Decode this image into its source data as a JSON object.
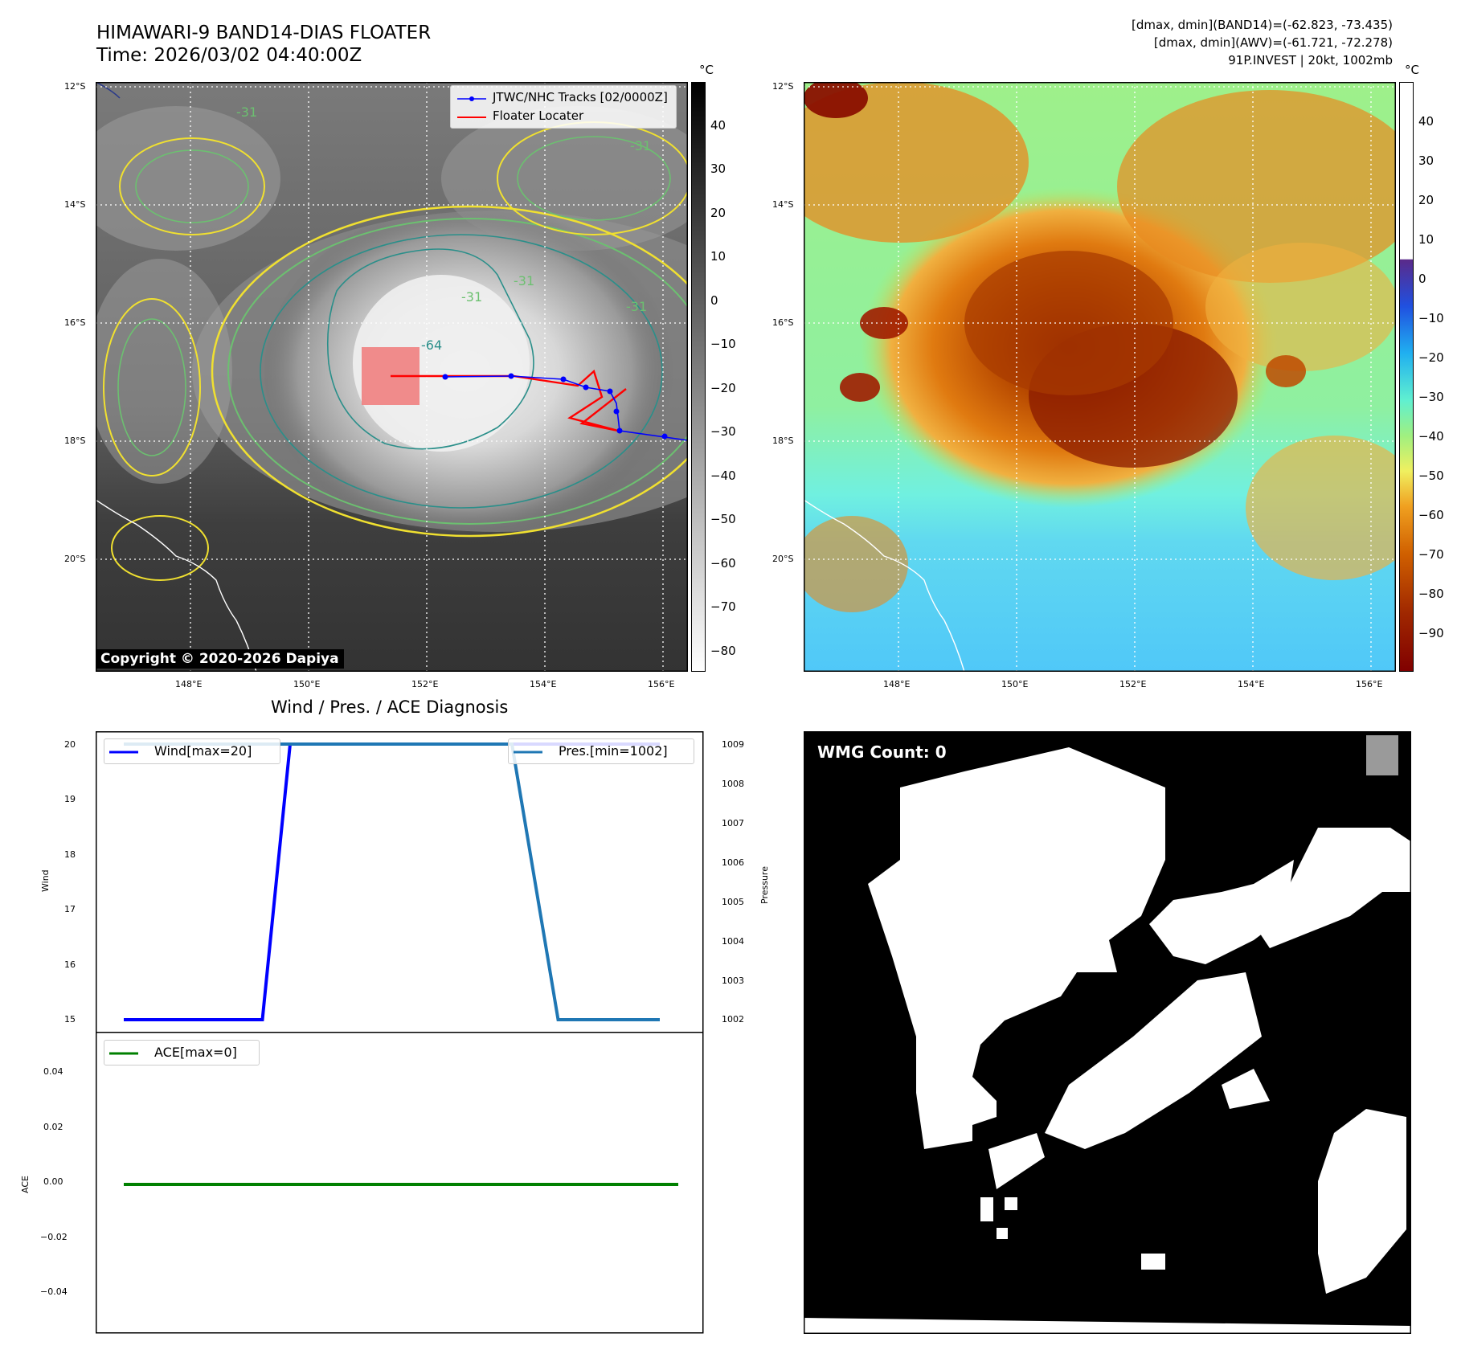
{
  "header": {
    "title_line1": "HIMAWARI-9 BAND14-DIAS FLOATER",
    "title_line2": "Time: 2026/03/02 04:40:00Z",
    "stats_line1": "[dmax, dmin](BAND14)=(-62.823, -73.435)",
    "stats_line2": "[dmax, dmin](AWV)=(-61.721, -72.278)",
    "stats_line3": "91P.INVEST | 20kt, 1002mb"
  },
  "maps": {
    "lat_labels": [
      "12°S",
      "14°S",
      "16°S",
      "18°S",
      "20°S"
    ],
    "lon_labels": [
      "148°E",
      "150°E",
      "152°E",
      "154°E",
      "156°E"
    ],
    "colorbar_unit": "°C",
    "left_colorbar_ticks": [
      "40",
      "30",
      "20",
      "10",
      "0",
      "−10",
      "−20",
      "−30",
      "−40",
      "−50",
      "−60",
      "−70",
      "−80"
    ],
    "right_colorbar_ticks": [
      "40",
      "30",
      "20",
      "10",
      "0",
      "−10",
      "−20",
      "−30",
      "−40",
      "−50",
      "−60",
      "−70",
      "−80",
      "−90"
    ],
    "legend_track": "JTWC/NHC Tracks [02/0000Z]",
    "legend_locater": "Floater Locater",
    "copyright": "Copyright © 2020-2026 Dapiya",
    "contour_labels": [
      "-64",
      "-31",
      "-31",
      "-31",
      "-31",
      "-31"
    ],
    "colors": {
      "track": "#0000ff",
      "locater": "#ff0000",
      "locater_box": "#f08080",
      "contour_yellow": "#f0e030",
      "contour_green": "#6cc070",
      "contour_teal": "#2a8f8a",
      "contour_navy": "#2a3a8a"
    }
  },
  "diagnosis": {
    "title": "Wind / Pres. / ACE Diagnosis",
    "wind_ylabel": "Wind",
    "pressure_ylabel": "Pressure",
    "ace_ylabel": "ACE",
    "legend_wind": "Wind[max=20]",
    "legend_pres": "Pres.[min=1002]",
    "legend_ace": "ACE[max=0]"
  },
  "wmg": {
    "label": "WMG Count: 0"
  },
  "chart_data": [
    {
      "type": "line",
      "panel": "wind-pressure",
      "x_index": [
        0,
        1,
        2,
        3,
        4,
        5,
        6,
        7,
        8,
        9,
        10,
        11,
        12
      ],
      "series": [
        {
          "name": "Wind[max=20]",
          "axis": "left",
          "color": "#0000ff",
          "values": [
            15,
            15,
            15,
            15,
            20,
            20,
            20,
            20,
            20,
            20,
            20,
            20,
            20
          ]
        },
        {
          "name": "Pres.[min=1002]",
          "axis": "right",
          "color": "#1f77b4",
          "values": [
            1009,
            1009,
            1009,
            1009,
            1009,
            1009,
            1009,
            1009,
            1009,
            1009,
            1002,
            1002,
            1002
          ]
        }
      ],
      "series_x": {
        "Wind[max=20]": [
          0,
          1,
          2,
          3,
          3.6,
          4,
          5,
          6,
          7,
          8,
          9,
          10,
          11.6
        ],
        "Pres.[min=1002]": [
          0,
          1,
          2,
          3,
          4,
          5,
          6,
          7,
          8,
          8.4,
          9.4,
          10,
          11.6
        ]
      },
      "ylabel_left": "Wind",
      "ylabel_right": "Pressure",
      "ylim_left": [
        14.8,
        20.2
      ],
      "ylim_right": [
        1001.7,
        1009.3
      ],
      "yticks_left": [
        "20",
        "19",
        "18",
        "17",
        "16",
        "15"
      ],
      "yticks_right": [
        "1009",
        "1008",
        "1007",
        "1006",
        "1005",
        "1004",
        "1003",
        "1002"
      ],
      "legend": "top-left and top-right"
    },
    {
      "type": "line",
      "panel": "ace",
      "series": [
        {
          "name": "ACE[max=0]",
          "color": "#008000",
          "values": [
            0,
            0
          ]
        }
      ],
      "ylabel": "ACE",
      "ylim": [
        -0.055,
        0.055
      ],
      "yticks": [
        "0.04",
        "0.02",
        "0.00",
        "−0.02",
        "−0.04"
      ],
      "legend": "top-left"
    }
  ]
}
